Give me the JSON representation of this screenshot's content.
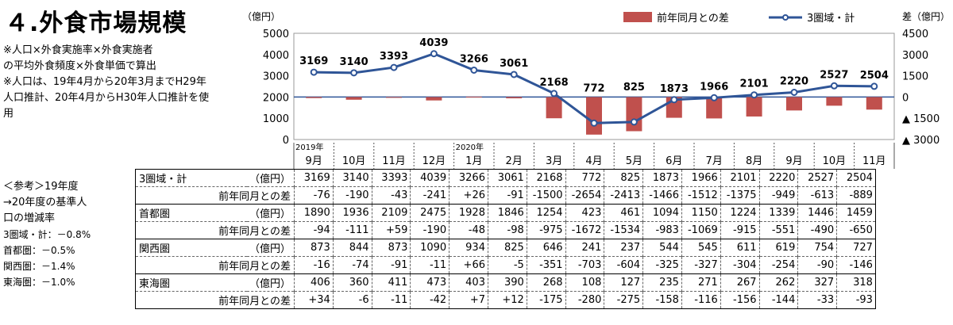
{
  "title": "４.外食市場規模",
  "notes": [
    "※人口×外食実施率×外食実施者",
    "の平均外食頻度×外食単価で算出",
    "※人口は、19年4月から20年3月までH29年",
    "人口推計、20年4月からH30年人口推計を使",
    "用"
  ],
  "reference": {
    "heading": "＜参考＞19年度",
    "lines": [
      "→20年度の基準人",
      "口の増減率"
    ],
    "rates": [
      "3圏域・計：－0.8%",
      "首都圏：－0.5%",
      "関西圏：－1.4%",
      "東海圏：－1.0%"
    ]
  },
  "chart_data": {
    "type": "bar+line",
    "categories": [
      "9月",
      "10月",
      "11月",
      "12月",
      "1月",
      "2月",
      "3月",
      "4月",
      "5月",
      "6月",
      "7月",
      "8月",
      "9月",
      "10月",
      "11月"
    ],
    "year_markers": [
      {
        "index": 0,
        "label": "2019年"
      },
      {
        "index": 4,
        "label": "2020年"
      }
    ],
    "left_axis": {
      "unit": "（億円）",
      "min": 0,
      "max": 5000,
      "ticks": [
        0,
        1000,
        2000,
        3000,
        4000,
        5000
      ]
    },
    "right_axis": {
      "unit": "差（億円）",
      "min": -3000,
      "max": 4500,
      "ticks": [
        4500,
        3000,
        1500,
        0,
        -1500,
        -3000
      ],
      "tick_labels": [
        "4500",
        "3000",
        "1500",
        "0",
        "▲ 1500",
        "▲ 3000"
      ]
    },
    "series": [
      {
        "name": "前年同月との差",
        "kind": "bar",
        "axis": "right",
        "color": "#c0504d",
        "values": [
          -76,
          -190,
          -43,
          -241,
          26,
          -91,
          -1500,
          -2654,
          -2413,
          -1466,
          -1512,
          -1375,
          -949,
          -613,
          -889
        ]
      },
      {
        "name": "3圏域・計",
        "kind": "line",
        "axis": "left",
        "color": "#2f5597",
        "values": [
          3169,
          3140,
          3393,
          4039,
          3266,
          3061,
          2168,
          772,
          825,
          1873,
          1966,
          2101,
          2220,
          2527,
          2504
        ]
      }
    ],
    "grid": false,
    "legend_position": "top-right"
  },
  "table": {
    "rows": [
      {
        "label": "3圏域・計",
        "unit": "（億円）",
        "values": [
          "3169",
          "3140",
          "3393",
          "4039",
          "3266",
          "3061",
          "2168",
          "772",
          "825",
          "1873",
          "1966",
          "2101",
          "2220",
          "2527",
          "2504"
        ]
      },
      {
        "label": "前年同月との差",
        "values": [
          "-76",
          "-190",
          "-43",
          "-241",
          "+26",
          "-91",
          "-1500",
          "-2654",
          "-2413",
          "-1466",
          "-1512",
          "-1375",
          "-949",
          "-613",
          "-889"
        ]
      },
      {
        "label": "首都圏",
        "unit": "（億円）",
        "values": [
          "1890",
          "1936",
          "2109",
          "2475",
          "1928",
          "1846",
          "1254",
          "423",
          "461",
          "1094",
          "1150",
          "1224",
          "1339",
          "1446",
          "1459"
        ]
      },
      {
        "label": "前年同月との差",
        "values": [
          "-94",
          "-111",
          "+59",
          "-190",
          "-48",
          "-98",
          "-975",
          "-1672",
          "-1534",
          "-983",
          "-1069",
          "-915",
          "-551",
          "-490",
          "-650"
        ]
      },
      {
        "label": "関西圏",
        "unit": "（億円）",
        "values": [
          "873",
          "844",
          "873",
          "1090",
          "934",
          "825",
          "646",
          "241",
          "237",
          "544",
          "545",
          "611",
          "619",
          "754",
          "727"
        ]
      },
      {
        "label": "前年同月との差",
        "values": [
          "-16",
          "-74",
          "-91",
          "-11",
          "+66",
          "-5",
          "-351",
          "-703",
          "-604",
          "-325",
          "-327",
          "-304",
          "-254",
          "-90",
          "-146"
        ]
      },
      {
        "label": "東海圏",
        "unit": "（億円）",
        "values": [
          "406",
          "360",
          "411",
          "473",
          "403",
          "390",
          "268",
          "108",
          "127",
          "235",
          "271",
          "267",
          "262",
          "327",
          "318"
        ]
      },
      {
        "label": "前年同月との差",
        "values": [
          "+34",
          "-6",
          "-11",
          "-42",
          "+7",
          "+12",
          "-175",
          "-280",
          "-275",
          "-158",
          "-116",
          "-156",
          "-144",
          "-33",
          "-93"
        ]
      }
    ]
  }
}
